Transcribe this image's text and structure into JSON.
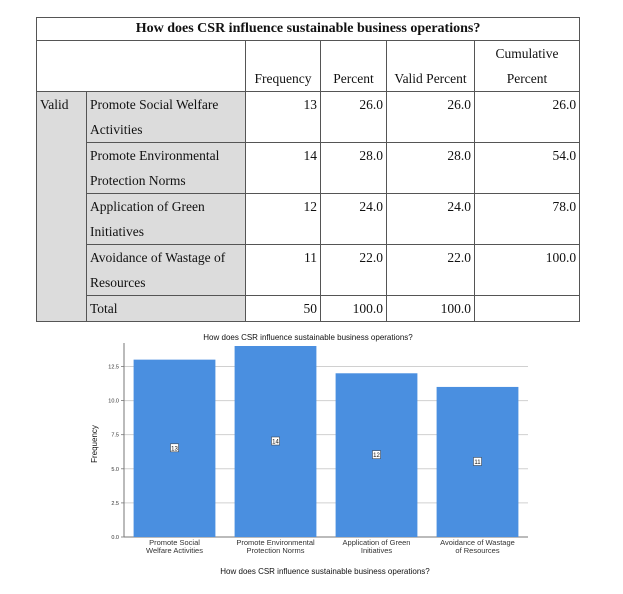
{
  "table": {
    "title": "How does CSR influence sustainable business operations?",
    "headers": {
      "frequency": "Frequency",
      "percent": "Percent",
      "valid_percent": "Valid Percent",
      "cumulative_line1": "Cumulative",
      "cumulative_line2": "Percent"
    },
    "group_label": "Valid",
    "rows": [
      {
        "label_line1": "Promote Social Welfare",
        "label_line2": "Activities",
        "frequency": "13",
        "percent": "26.0",
        "valid_percent": "26.0",
        "cumulative": "26.0"
      },
      {
        "label_line1": "Promote Environmental",
        "label_line2": "Protection Norms",
        "frequency": "14",
        "percent": "28.0",
        "valid_percent": "28.0",
        "cumulative": "54.0"
      },
      {
        "label_line1": "Application of Green",
        "label_line2": "Initiatives",
        "frequency": "12",
        "percent": "24.0",
        "valid_percent": "24.0",
        "cumulative": "78.0"
      },
      {
        "label_line1": "Avoidance of Wastage of",
        "label_line2": "Resources",
        "frequency": "11",
        "percent": "22.0",
        "valid_percent": "22.0",
        "cumulative": "100.0"
      }
    ],
    "total": {
      "label": "Total",
      "frequency": "50",
      "percent": "100.0",
      "valid_percent": "100.0"
    }
  },
  "chart_data": {
    "type": "bar",
    "title": "How does CSR influence sustainable business operations?",
    "xlabel": "How does CSR influence sustainable business operations?",
    "ylabel": "Frequency",
    "categories": [
      [
        "Promote Social",
        "Welfare Activities"
      ],
      [
        "Promote Environmental",
        "Protection Norms"
      ],
      [
        "Application of Green",
        "Initiatives"
      ],
      [
        "Avoidance of Wastage",
        "of Resources"
      ]
    ],
    "values": [
      13,
      14,
      12,
      11
    ],
    "data_labels": [
      "13",
      "14",
      "12",
      "11"
    ],
    "ylim": [
      0,
      14
    ],
    "yticks": [
      0.0,
      2.5,
      5.0,
      7.5,
      10.0,
      12.5
    ],
    "ytick_labels": [
      "0.0",
      "2.5",
      "5.0",
      "7.5",
      "10.0",
      "12.5"
    ],
    "grid": true,
    "bar_color": "#4a8fe0"
  }
}
